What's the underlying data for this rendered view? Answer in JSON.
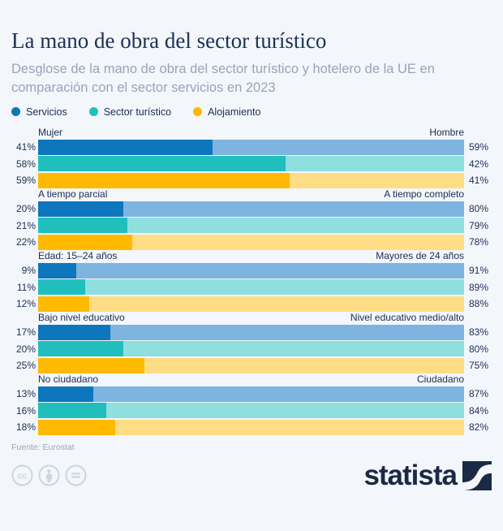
{
  "header": {
    "title": "La mano de obra del sector turístico",
    "subtitle": "Desglose de la mano de obra del sector turístico y hotelero de la UE en comparación con el sector servicios en 2023"
  },
  "colors": {
    "background": "#f3f6fa",
    "heading_text": "#1b3156",
    "subtitle_text": "#9aa3b9",
    "label_text": "#1b2e55",
    "source_text": "#9ba7b6",
    "cc_icon": "#ccd5e0",
    "logo_navy": "#1b2a44"
  },
  "chart_data": {
    "type": "bar",
    "subtype": "horizontal-diverging-100pct-stacked",
    "unit": "%",
    "legend_position": "top",
    "series": [
      {
        "name": "Servicios",
        "color": "#0e76bc",
        "light_color": "#7db4e0"
      },
      {
        "name": "Sector turístico",
        "color": "#20bfbe",
        "light_color": "#8fdfdf"
      },
      {
        "name": "Alojamiento",
        "color": "#ffb900",
        "light_color": "#ffdd85"
      }
    ],
    "groups": [
      {
        "left_label": "Mujer",
        "right_label": "Hombre",
        "values": [
          [
            41,
            59
          ],
          [
            58,
            42
          ],
          [
            59,
            41
          ]
        ]
      },
      {
        "left_label": "A tiempo parcial",
        "right_label": "A tiempo completo",
        "values": [
          [
            20,
            80
          ],
          [
            21,
            79
          ],
          [
            22,
            78
          ]
        ]
      },
      {
        "left_label": "Edad: 15–24 años",
        "right_label": "Mayores de 24 años",
        "values": [
          [
            9,
            91
          ],
          [
            11,
            89
          ],
          [
            12,
            88
          ]
        ]
      },
      {
        "left_label": "Bajo nivel educativo",
        "right_label": "Nivel educativo medio/alto",
        "values": [
          [
            17,
            83
          ],
          [
            20,
            80
          ],
          [
            25,
            75
          ]
        ]
      },
      {
        "left_label": "No ciudadano",
        "right_label": "Ciudadano",
        "values": [
          [
            13,
            87
          ],
          [
            16,
            84
          ],
          [
            18,
            82
          ]
        ]
      }
    ]
  },
  "footer": {
    "source": "Fuente: Eurostat",
    "license_icons": [
      "cc-icon",
      "cc-by-icon",
      "cc-nd-icon"
    ],
    "brand": "statista"
  }
}
